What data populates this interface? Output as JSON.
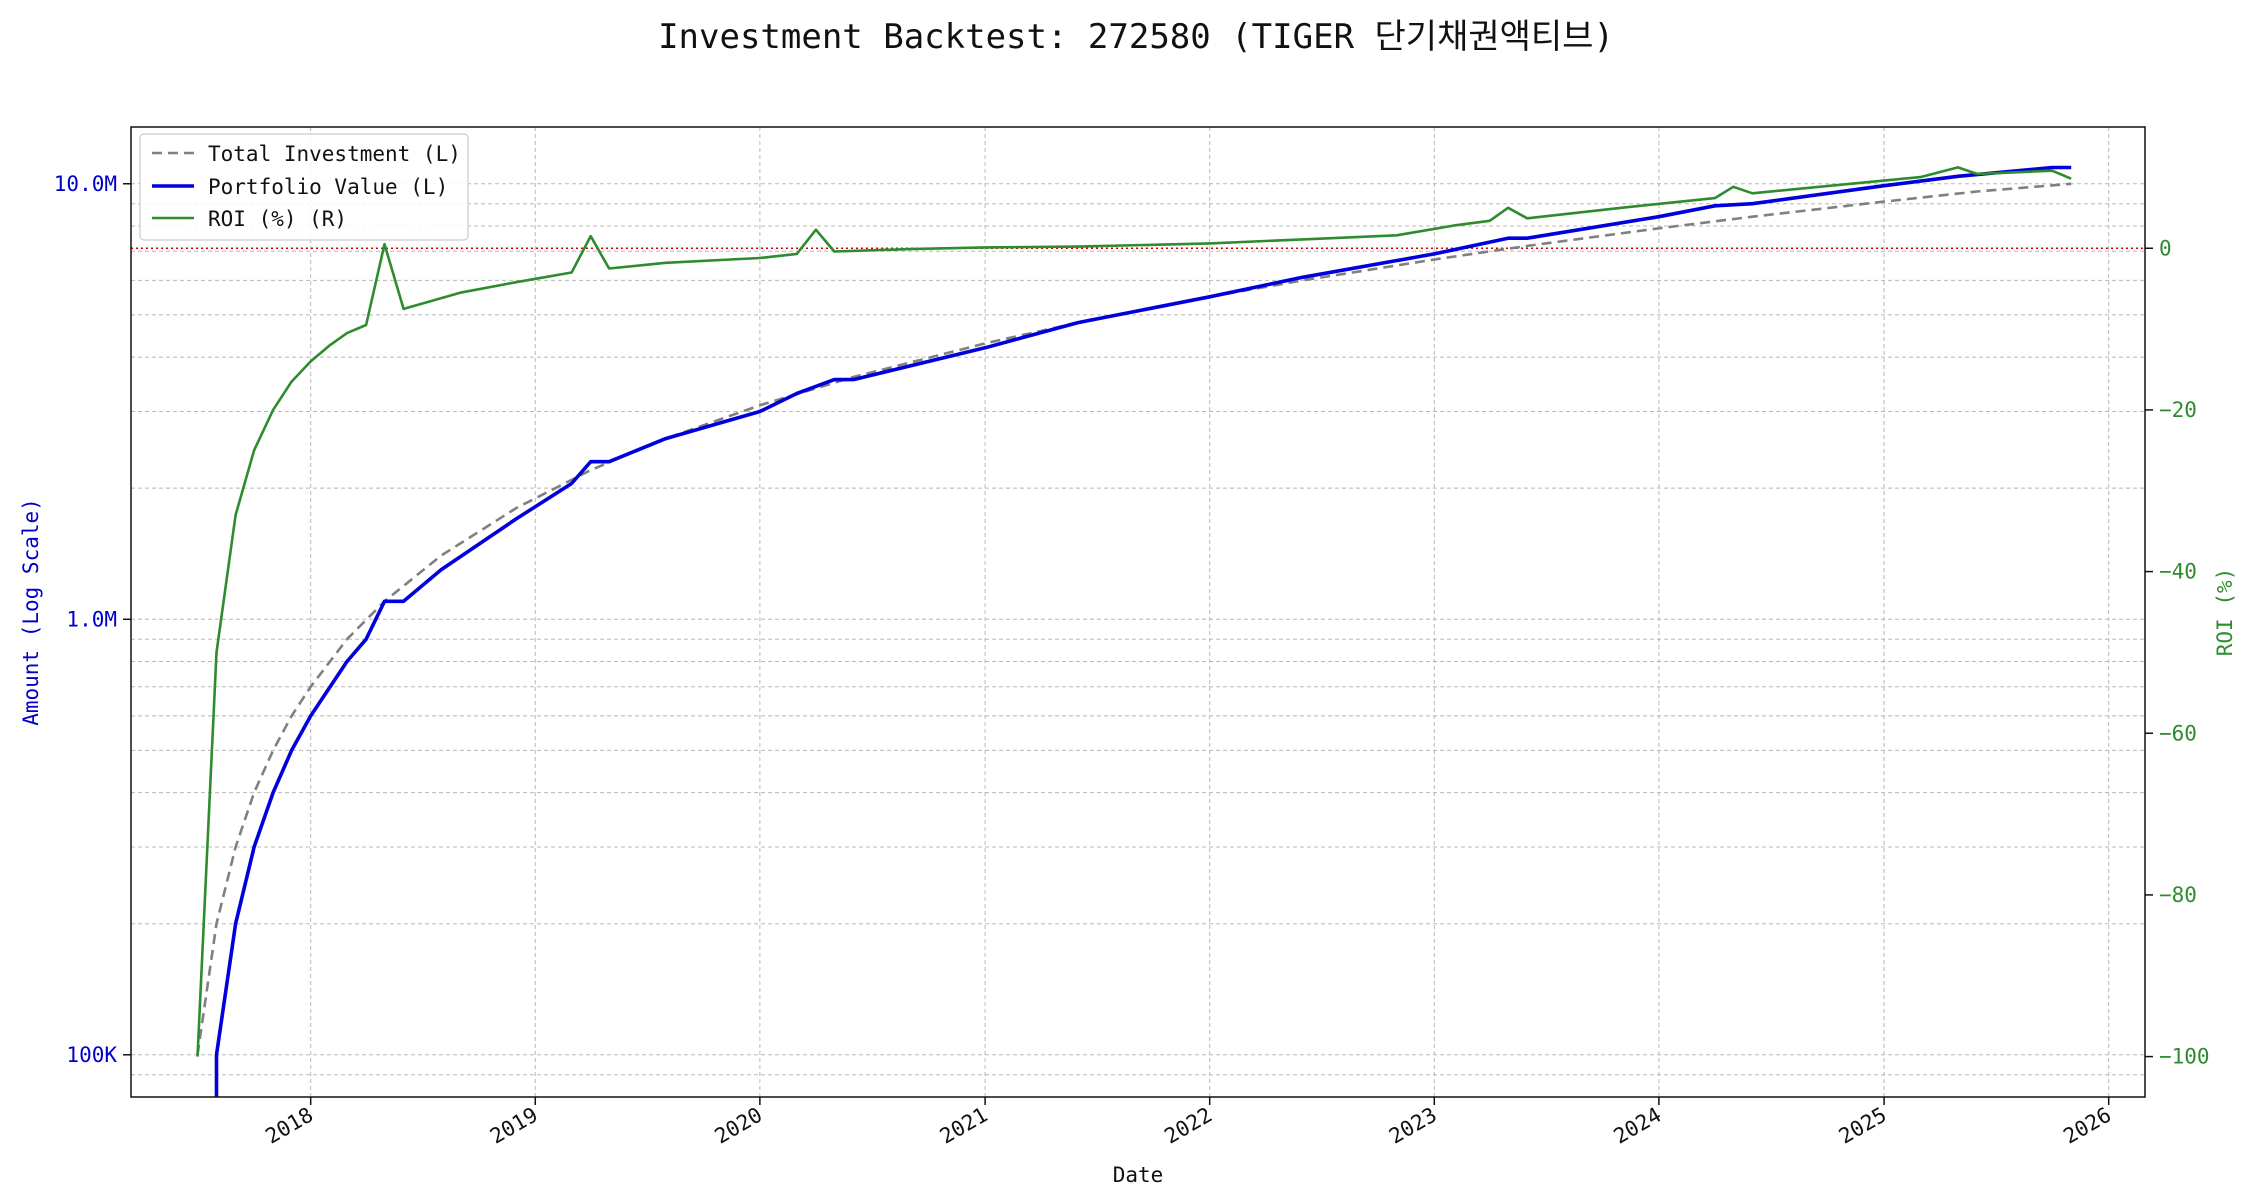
{
  "chart_data": {
    "type": "line",
    "title": "Investment Backtest: 272580 (TIGER 단기채권액티브)",
    "xlabel": "Date",
    "ylabel_left": "Amount (Log Scale)",
    "ylabel_right": "ROI (%)",
    "x_ticks": [
      "2018",
      "2019",
      "2020",
      "2021",
      "2022",
      "2023",
      "2024",
      "2025",
      "2026"
    ],
    "y_left_ticks": [
      {
        "value": 100000,
        "label": "100K"
      },
      {
        "value": 1000000,
        "label": "1.0M"
      },
      {
        "value": 10000000,
        "label": "10.0M"
      }
    ],
    "y_right_ticks": [
      -100,
      -80,
      -60,
      -40,
      -20,
      0
    ],
    "ylim_left": [
      80000,
      13500000
    ],
    "ylim_right": [
      -105,
      15
    ],
    "xlim": [
      "2017-03-15",
      "2026-03-01"
    ],
    "y_left_scale": "log",
    "grid": true,
    "legend_position": "top-left",
    "zero_line_color": "#cc0000",
    "series": [
      {
        "name": "Total Investment (L)",
        "axis": "left",
        "color": "#808080",
        "style": "dashed",
        "points": [
          [
            "2017-07-01",
            100000
          ],
          [
            "2017-08-01",
            200000
          ],
          [
            "2017-09-01",
            300000
          ],
          [
            "2017-10-01",
            400000
          ],
          [
            "2017-11-01",
            500000
          ],
          [
            "2017-12-01",
            600000
          ],
          [
            "2018-01-01",
            700000
          ],
          [
            "2018-03-01",
            900000
          ],
          [
            "2018-05-01",
            1100000
          ],
          [
            "2018-08-01",
            1400000
          ],
          [
            "2018-12-01",
            1800000
          ],
          [
            "2019-04-01",
            2200000
          ],
          [
            "2019-08-01",
            2600000
          ],
          [
            "2020-01-01",
            3100000
          ],
          [
            "2020-06-01",
            3600000
          ],
          [
            "2021-01-01",
            4300000
          ],
          [
            "2021-06-01",
            4800000
          ],
          [
            "2022-01-01",
            5500000
          ],
          [
            "2022-06-01",
            6000000
          ],
          [
            "2023-01-01",
            6700000
          ],
          [
            "2023-06-01",
            7200000
          ],
          [
            "2024-01-01",
            7900000
          ],
          [
            "2024-06-01",
            8400000
          ],
          [
            "2025-01-01",
            9100000
          ],
          [
            "2025-06-01",
            9600000
          ],
          [
            "2025-11-01",
            10000000
          ]
        ]
      },
      {
        "name": "Portfolio Value (L)",
        "axis": "left",
        "color": "#0000dd",
        "style": "solid",
        "points": [
          [
            "2017-08-01",
            60000
          ],
          [
            "2017-08-01",
            100000
          ],
          [
            "2017-09-01",
            200000
          ],
          [
            "2017-10-01",
            300000
          ],
          [
            "2017-11-01",
            400000
          ],
          [
            "2017-12-01",
            500000
          ],
          [
            "2018-01-01",
            600000
          ],
          [
            "2018-03-01",
            800000
          ],
          [
            "2018-04-01",
            900000
          ],
          [
            "2018-05-01",
            1100000
          ],
          [
            "2018-06-01",
            1100000
          ],
          [
            "2018-08-01",
            1300000
          ],
          [
            "2018-12-01",
            1700000
          ],
          [
            "2019-03-01",
            2050000
          ],
          [
            "2019-04-01",
            2300000
          ],
          [
            "2019-05-01",
            2300000
          ],
          [
            "2019-08-01",
            2600000
          ],
          [
            "2020-01-01",
            3000000
          ],
          [
            "2020-03-01",
            3300000
          ],
          [
            "2020-05-01",
            3550000
          ],
          [
            "2020-06-01",
            3550000
          ],
          [
            "2021-01-01",
            4200000
          ],
          [
            "2021-06-01",
            4800000
          ],
          [
            "2022-01-01",
            5500000
          ],
          [
            "2022-06-01",
            6100000
          ],
          [
            "2023-01-01",
            6900000
          ],
          [
            "2023-05-01",
            7500000
          ],
          [
            "2023-06-01",
            7500000
          ],
          [
            "2024-01-01",
            8400000
          ],
          [
            "2024-04-01",
            8900000
          ],
          [
            "2024-06-01",
            9000000
          ],
          [
            "2025-01-01",
            9900000
          ],
          [
            "2025-05-01",
            10400000
          ],
          [
            "2025-10-01",
            10900000
          ],
          [
            "2025-11-01",
            10900000
          ]
        ]
      },
      {
        "name": "ROI (%) (R)",
        "axis": "right",
        "color": "#2e8b2e",
        "style": "solid",
        "points": [
          [
            "2017-07-01",
            -100
          ],
          [
            "2017-08-01",
            -50
          ],
          [
            "2017-09-01",
            -33
          ],
          [
            "2017-10-01",
            -25
          ],
          [
            "2017-11-01",
            -20
          ],
          [
            "2017-12-01",
            -16.5
          ],
          [
            "2018-01-01",
            -14
          ],
          [
            "2018-02-01",
            -12
          ],
          [
            "2018-03-01",
            -10.5
          ],
          [
            "2018-04-01",
            -9.5
          ],
          [
            "2018-05-01",
            0.5
          ],
          [
            "2018-06-01",
            -7.5
          ],
          [
            "2018-09-01",
            -5.5
          ],
          [
            "2018-12-01",
            -4.2
          ],
          [
            "2019-03-01",
            -3
          ],
          [
            "2019-04-01",
            1.5
          ],
          [
            "2019-05-01",
            -2.5
          ],
          [
            "2019-08-01",
            -1.8
          ],
          [
            "2020-01-01",
            -1.2
          ],
          [
            "2020-03-01",
            -0.7
          ],
          [
            "2020-04-01",
            2.3
          ],
          [
            "2020-05-01",
            -0.4
          ],
          [
            "2020-09-01",
            -0.1
          ],
          [
            "2021-01-01",
            0.1
          ],
          [
            "2021-06-01",
            0.2
          ],
          [
            "2022-01-01",
            0.6
          ],
          [
            "2022-06-01",
            1.1
          ],
          [
            "2022-11-01",
            1.6
          ],
          [
            "2023-02-01",
            2.8
          ],
          [
            "2023-04-01",
            3.4
          ],
          [
            "2023-05-01",
            5
          ],
          [
            "2023-06-01",
            3.7
          ],
          [
            "2023-11-01",
            5
          ],
          [
            "2024-04-01",
            6.2
          ],
          [
            "2024-05-01",
            7.6
          ],
          [
            "2024-06-01",
            6.8
          ],
          [
            "2025-03-01",
            8.8
          ],
          [
            "2025-05-01",
            10
          ],
          [
            "2025-06-01",
            9.2
          ],
          [
            "2025-10-01",
            9.6
          ],
          [
            "2025-11-01",
            8.6
          ]
        ]
      }
    ]
  }
}
